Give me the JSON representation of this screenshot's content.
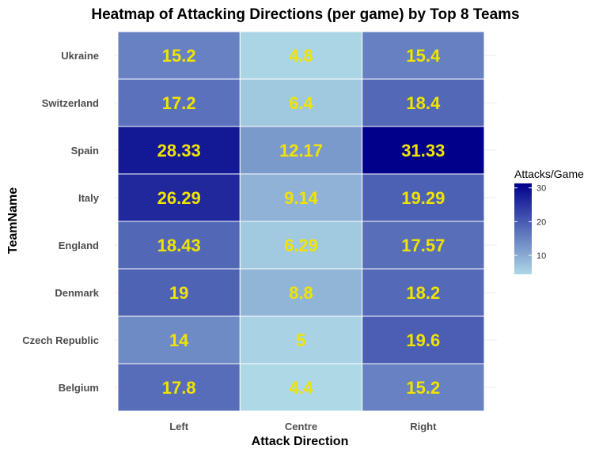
{
  "chart_data": {
    "type": "heatmap",
    "title": "Heatmap of Attacking Directions (per game) by Top 8 Teams",
    "xlabel": "Attack Direction",
    "ylabel": "TeamName",
    "x_categories": [
      "Left",
      "Centre",
      "Right"
    ],
    "y_categories": [
      "Ukraine",
      "Switzerland",
      "Spain",
      "Italy",
      "England",
      "Denmark",
      "Czech Republic",
      "Belgium"
    ],
    "values": [
      [
        15.2,
        4.8,
        15.4
      ],
      [
        17.2,
        6.4,
        18.4
      ],
      [
        28.33,
        12.17,
        31.33
      ],
      [
        26.29,
        9.14,
        19.29
      ],
      [
        18.43,
        6.29,
        17.57
      ],
      [
        19,
        8.8,
        18.2
      ],
      [
        14,
        5,
        19.6
      ],
      [
        17.8,
        4.4,
        15.2
      ]
    ],
    "value_labels": [
      [
        "15.2",
        "4.8",
        "15.4"
      ],
      [
        "17.2",
        "6.4",
        "18.4"
      ],
      [
        "28.33",
        "12.17",
        "31.33"
      ],
      [
        "26.29",
        "9.14",
        "19.29"
      ],
      [
        "18.43",
        "6.29",
        "17.57"
      ],
      [
        "19",
        "8.8",
        "18.2"
      ],
      [
        "14",
        "5",
        "19.6"
      ],
      [
        "17.8",
        "4.4",
        "15.2"
      ]
    ],
    "color_scale": {
      "low_color": "#add8e6",
      "high_color": "#00008b",
      "domain": [
        4.4,
        31.33
      ]
    },
    "legend": {
      "title": "Attacks/Game",
      "ticks": [
        10,
        20,
        30
      ],
      "placement": "right"
    },
    "label_color": "#f0e400",
    "grid": true
  }
}
